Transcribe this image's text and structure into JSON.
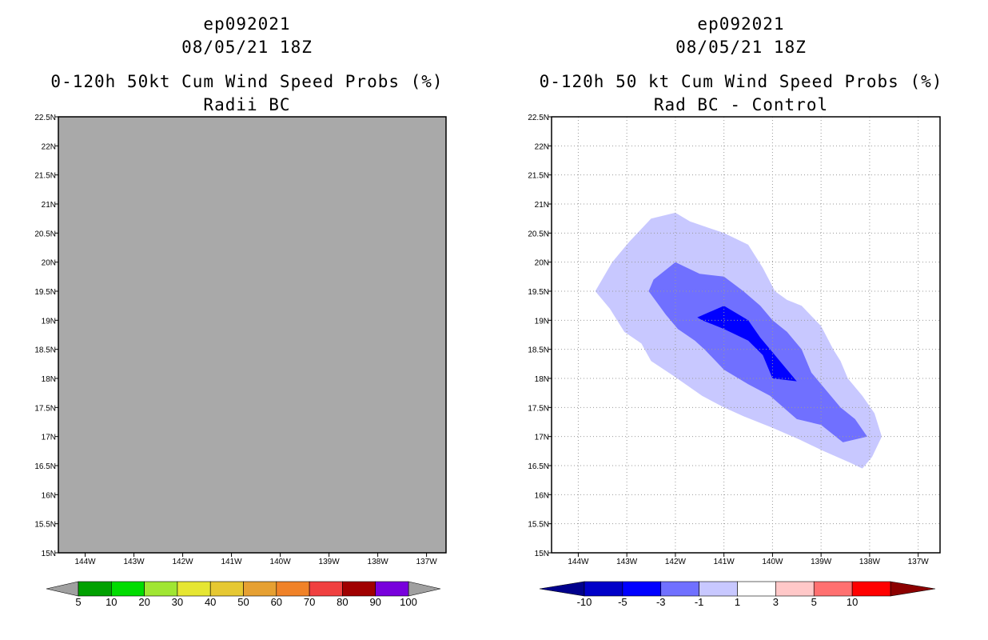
{
  "left_panel": {
    "title_lines": [
      "ep092021",
      "08/05/21 18Z",
      "0-120h 50kt Cum Wind Speed Probs (%)",
      "Radii BC"
    ]
  },
  "right_panel": {
    "title_lines": [
      "ep092021",
      "08/05/21 18Z",
      "0-120h 50 kt Cum Wind Speed Probs (%)",
      "Rad BC - Control"
    ]
  },
  "colors": {
    "left_field": "#a9a9a9",
    "left_scale": [
      "#00a000",
      "#00dc00",
      "#a0e632",
      "#e6e632",
      "#e6c832",
      "#e6a032",
      "#f08228",
      "#f04040",
      "#a00000",
      "#7800dc"
    ],
    "right_scale": [
      "#0000c8",
      "#0000ff",
      "#7070ff",
      "#c8c8ff",
      "#ffffff",
      "#ffc8c8",
      "#ff7070",
      "#ff0000"
    ],
    "left_low_tri": "#a0a0a0",
    "left_high_tri": "#a0a0a0",
    "right_low_tri": "#00008c",
    "right_high_tri": "#8c0000"
  },
  "chart_data": [
    {
      "type": "heatmap",
      "panel": "left",
      "title": "0-120h 50kt Cum Wind Speed Probs (%) - Radii BC",
      "x_ticks": [
        "144W",
        "143W",
        "142W",
        "141W",
        "140W",
        "139W",
        "138W",
        "137W"
      ],
      "x_values": [
        -144,
        -143,
        -142,
        -141,
        -140,
        -139,
        -138,
        -137
      ],
      "y_ticks": [
        "15N",
        "15.5N",
        "16N",
        "16.5N",
        "17N",
        "17.5N",
        "18N",
        "18.5N",
        "19N",
        "19.5N",
        "20N",
        "20.5N",
        "21N",
        "21.5N",
        "22N",
        "22.5N"
      ],
      "y_values": [
        15,
        15.5,
        16,
        16.5,
        17,
        17.5,
        18,
        18.5,
        19,
        19.5,
        20,
        20.5,
        21,
        21.5,
        22,
        22.5
      ],
      "xlim": [
        -144.55,
        -136.6
      ],
      "ylim": [
        15,
        22.5
      ],
      "grid": false,
      "field": "uniform gray (no probability contours)",
      "colorbar_labels": [
        "5",
        "10",
        "20",
        "30",
        "40",
        "50",
        "60",
        "70",
        "80",
        "90",
        "100"
      ]
    },
    {
      "type": "heatmap",
      "panel": "right",
      "title": "0-120h 50 kt Cum Wind Speed Probs (%) - Rad BC - Control",
      "x_ticks": [
        "144W",
        "143W",
        "142W",
        "141W",
        "140W",
        "139W",
        "138W",
        "137W"
      ],
      "x_values": [
        -144,
        -143,
        -142,
        -141,
        -140,
        -139,
        -138,
        -137
      ],
      "y_ticks": [
        "15N",
        "15.5N",
        "16N",
        "16.5N",
        "17N",
        "17.5N",
        "18N",
        "18.5N",
        "19N",
        "19.5N",
        "20N",
        "20.5N",
        "21N",
        "21.5N",
        "22N",
        "22.5N"
      ],
      "y_values": [
        15,
        15.5,
        16,
        16.5,
        17,
        17.5,
        18,
        18.5,
        19,
        19.5,
        20,
        20.5,
        21,
        21.5,
        22,
        22.5
      ],
      "xlim": [
        -144.55,
        -136.55
      ],
      "ylim": [
        15,
        22.5
      ],
      "grid": true,
      "colorbar_labels": [
        "-10",
        "-5",
        "-3",
        "-1",
        "1",
        "3",
        "5",
        "10"
      ],
      "contours": [
        {
          "level": "-3 to -1",
          "color_index": 3,
          "polygon": [
            [
              -143.65,
              19.5
            ],
            [
              -143.3,
              20.0
            ],
            [
              -142.95,
              20.35
            ],
            [
              -142.5,
              20.75
            ],
            [
              -142.0,
              20.85
            ],
            [
              -141.7,
              20.7
            ],
            [
              -141.0,
              20.5
            ],
            [
              -140.5,
              20.3
            ],
            [
              -140.2,
              19.9
            ],
            [
              -139.95,
              19.5
            ],
            [
              -139.7,
              19.35
            ],
            [
              -139.4,
              19.25
            ],
            [
              -139.0,
              18.9
            ],
            [
              -138.75,
              18.5
            ],
            [
              -138.6,
              18.3
            ],
            [
              -138.45,
              18.0
            ],
            [
              -138.15,
              17.7
            ],
            [
              -137.9,
              17.4
            ],
            [
              -137.75,
              17.0
            ],
            [
              -137.95,
              16.65
            ],
            [
              -138.15,
              16.45
            ],
            [
              -138.4,
              16.55
            ],
            [
              -138.95,
              16.75
            ],
            [
              -139.45,
              16.95
            ],
            [
              -140.0,
              17.15
            ],
            [
              -140.6,
              17.35
            ],
            [
              -141.0,
              17.5
            ],
            [
              -141.45,
              17.7
            ],
            [
              -142.05,
              18.05
            ],
            [
              -142.5,
              18.3
            ],
            [
              -142.7,
              18.6
            ],
            [
              -143.05,
              18.8
            ],
            [
              -143.35,
              19.2
            ]
          ]
        },
        {
          "level": "-5 to -3",
          "color_index": 2,
          "polygon": [
            [
              -142.55,
              19.5
            ],
            [
              -142.45,
              19.7
            ],
            [
              -142.0,
              20.0
            ],
            [
              -141.5,
              19.8
            ],
            [
              -141.0,
              19.75
            ],
            [
              -140.6,
              19.5
            ],
            [
              -140.25,
              19.25
            ],
            [
              -140.0,
              19.0
            ],
            [
              -139.7,
              18.8
            ],
            [
              -139.4,
              18.5
            ],
            [
              -139.2,
              18.1
            ],
            [
              -138.9,
              17.8
            ],
            [
              -138.6,
              17.5
            ],
            [
              -138.3,
              17.3
            ],
            [
              -138.05,
              17.0
            ],
            [
              -138.55,
              16.9
            ],
            [
              -139.0,
              17.2
            ],
            [
              -139.5,
              17.3
            ],
            [
              -140.05,
              17.7
            ],
            [
              -140.5,
              17.9
            ],
            [
              -141.0,
              18.15
            ],
            [
              -141.4,
              18.5
            ],
            [
              -141.6,
              18.65
            ],
            [
              -141.95,
              18.85
            ],
            [
              -142.2,
              19.1
            ]
          ]
        },
        {
          "level": "-10 to -5",
          "color_index": 1,
          "polygon": [
            [
              -141.55,
              19.05
            ],
            [
              -141.0,
              19.25
            ],
            [
              -140.5,
              19.0
            ],
            [
              -140.25,
              18.7
            ],
            [
              -140.0,
              18.45
            ],
            [
              -139.75,
              18.2
            ],
            [
              -139.5,
              17.95
            ],
            [
              -140.0,
              18.0
            ],
            [
              -140.2,
              18.4
            ],
            [
              -140.5,
              18.65
            ],
            [
              -141.0,
              18.85
            ],
            [
              -141.45,
              19.0
            ]
          ]
        }
      ]
    }
  ]
}
